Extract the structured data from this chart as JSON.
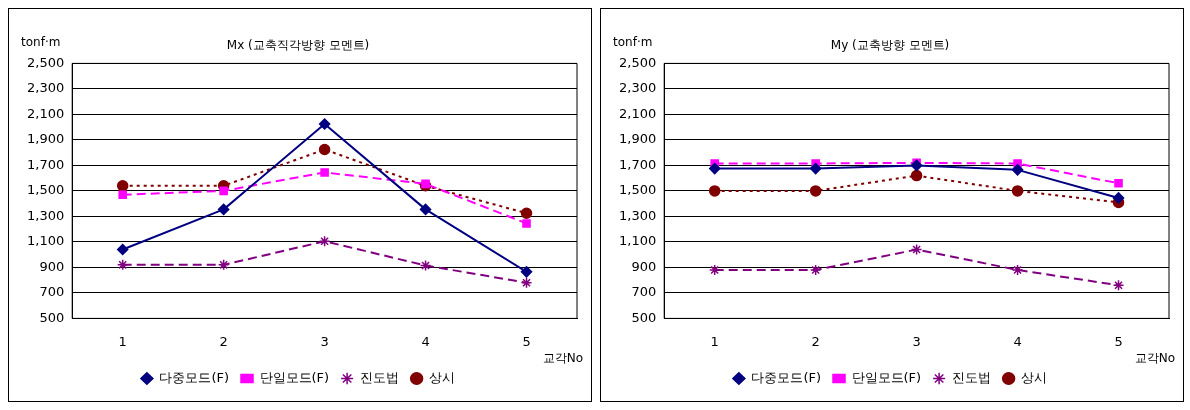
{
  "chart_data": [
    {
      "type": "line",
      "title": "Mx (교축직각방향 모멘트)",
      "ylabel": "tonf·m",
      "xlabel": "교각No",
      "categories": [
        "1",
        "2",
        "3",
        "4",
        "5"
      ],
      "series": [
        {
          "name": "다중모드(F)",
          "color": "#000080",
          "marker": "diamond",
          "line_style": "solid",
          "values": [
            1040,
            1355,
            2025,
            1355,
            865
          ]
        },
        {
          "name": "단일모드(F)",
          "color": "#ff00ff",
          "marker": "square",
          "line_style": "dashed",
          "values": [
            1470,
            1500,
            1645,
            1555,
            1245
          ]
        },
        {
          "name": "진도법",
          "color": "#800080",
          "marker": "cross",
          "line_style": "dashed",
          "values": [
            920,
            920,
            1105,
            915,
            780
          ]
        },
        {
          "name": "상시",
          "color": "#800000",
          "marker": "circle",
          "line_style": "dotted",
          "values": [
            1540,
            1540,
            1825,
            1540,
            1325
          ]
        }
      ],
      "ylim": [
        500,
        2500
      ],
      "yticks": [
        500,
        700,
        900,
        {
          "value": 1100,
          "label": "1,100"
        },
        {
          "value": 1300,
          "label": "1,300"
        },
        {
          "value": 1500,
          "label": "1,500"
        },
        {
          "value": 1700,
          "label": "1,700"
        },
        {
          "value": 1900,
          "label": "1,900"
        },
        {
          "value": 2100,
          "label": "2,100"
        },
        {
          "value": 2300,
          "label": "2,300"
        },
        {
          "value": 2500,
          "label": "2,500"
        }
      ],
      "grid": "y",
      "legend": "bottom"
    },
    {
      "type": "line",
      "title": "My (교축방향 모멘트)",
      "ylabel": "tonf·m",
      "xlabel": "교각No",
      "categories": [
        "1",
        "2",
        "3",
        "4",
        "5"
      ],
      "series": [
        {
          "name": "다중모드(F)",
          "color": "#000080",
          "marker": "diamond",
          "line_style": "solid",
          "values": [
            1675,
            1675,
            1700,
            1665,
            1445
          ]
        },
        {
          "name": "단일모드(F)",
          "color": "#ff00ff",
          "marker": "square",
          "line_style": "dashed",
          "values": [
            1715,
            1715,
            1720,
            1715,
            1560
          ]
        },
        {
          "name": "진도법",
          "color": "#800080",
          "marker": "cross",
          "line_style": "dashed",
          "values": [
            880,
            880,
            1040,
            880,
            760
          ]
        },
        {
          "name": "상시",
          "color": "#800000",
          "marker": "circle",
          "line_style": "dotted",
          "values": [
            1500,
            1500,
            1620,
            1500,
            1410
          ]
        }
      ],
      "ylim": [
        500,
        2500
      ],
      "yticks": [
        500,
        700,
        900,
        {
          "value": 1100,
          "label": "1,100"
        },
        {
          "value": 1300,
          "label": "1,300"
        },
        {
          "value": 1500,
          "label": "1,500"
        },
        {
          "value": 1700,
          "label": "1,700"
        },
        {
          "value": 1900,
          "label": "1,900"
        },
        {
          "value": 2100,
          "label": "2,100"
        },
        {
          "value": 2300,
          "label": "2,300"
        },
        {
          "value": 2500,
          "label": "2,500"
        }
      ],
      "grid": "y",
      "legend": "bottom"
    }
  ]
}
